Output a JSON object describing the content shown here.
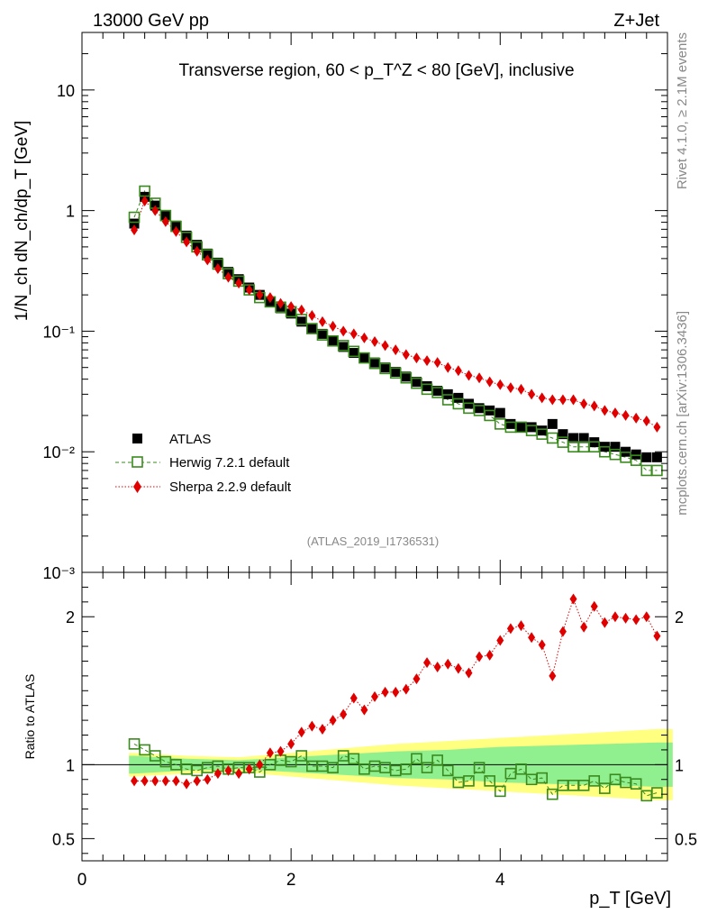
{
  "header": {
    "left": "13000 GeV pp",
    "right": "Z+Jet",
    "side_rivet": "Rivet 4.1.0, ≥ 2.1M events",
    "side_mcplots": "mcplots.cern.ch [arXiv:1306.3436]"
  },
  "chart_data": [
    {
      "type": "scatter",
      "title": "Transverse region, 60 < p_T^Z < 80 [GeV], inclusive",
      "analysis_label": "(ATLAS_2019_I1736531)",
      "ylabel": "1/N_ch dN_ch/dp_T [GeV]",
      "yscale": "log",
      "ylim": [
        0.001,
        30
      ],
      "xlim": [
        0,
        5.6
      ],
      "ytick_labels": [
        "10⁻³",
        "10⁻²",
        "10⁻¹",
        "1",
        "10"
      ],
      "legend": [
        "ATLAS",
        "Herwig 7.2.1 default",
        "Sherpa 2.2.9 default"
      ],
      "x": [
        0.5,
        0.6,
        0.7,
        0.8,
        0.9,
        1.0,
        1.1,
        1.2,
        1.3,
        1.4,
        1.5,
        1.6,
        1.7,
        1.8,
        1.9,
        2.0,
        2.1,
        2.2,
        2.3,
        2.4,
        2.5,
        2.6,
        2.7,
        2.8,
        2.9,
        3.0,
        3.1,
        3.2,
        3.3,
        3.4,
        3.5,
        3.6,
        3.7,
        3.8,
        3.9,
        4.0,
        4.1,
        4.2,
        4.3,
        4.4,
        4.5,
        4.6,
        4.7,
        4.8,
        4.9,
        5.0,
        5.1,
        5.2,
        5.3,
        5.4,
        5.5
      ],
      "series": [
        {
          "name": "ATLAS",
          "values": [
            0.78,
            1.3,
            1.1,
            0.9,
            0.75,
            0.62,
            0.52,
            0.44,
            0.37,
            0.31,
            0.27,
            0.23,
            0.2,
            0.175,
            0.155,
            0.14,
            0.12,
            0.105,
            0.095,
            0.083,
            0.074,
            0.066,
            0.06,
            0.055,
            0.05,
            0.046,
            0.042,
            0.038,
            0.035,
            0.032,
            0.03,
            0.028,
            0.025,
            0.023,
            0.022,
            0.021,
            0.017,
            0.016,
            0.016,
            0.015,
            0.017,
            0.014,
            0.013,
            0.013,
            0.012,
            0.011,
            0.011,
            0.01,
            0.0095,
            0.009,
            0.009
          ]
        },
        {
          "name": "Herwig 7.2.1 default",
          "values": [
            0.88,
            1.45,
            1.15,
            0.91,
            0.74,
            0.6,
            0.5,
            0.43,
            0.36,
            0.3,
            0.26,
            0.22,
            0.19,
            0.175,
            0.158,
            0.145,
            0.125,
            0.105,
            0.093,
            0.083,
            0.076,
            0.068,
            0.06,
            0.054,
            0.049,
            0.045,
            0.041,
            0.037,
            0.033,
            0.031,
            0.027,
            0.025,
            0.023,
            0.022,
            0.02,
            0.017,
            0.016,
            0.016,
            0.015,
            0.014,
            0.013,
            0.012,
            0.011,
            0.011,
            0.011,
            0.01,
            0.0095,
            0.009,
            0.0085,
            0.007,
            0.007
          ]
        },
        {
          "name": "Sherpa 2.2.9 default",
          "values": [
            0.69,
            1.2,
            1.0,
            0.81,
            0.67,
            0.55,
            0.46,
            0.39,
            0.33,
            0.28,
            0.25,
            0.22,
            0.2,
            0.19,
            0.17,
            0.16,
            0.15,
            0.135,
            0.12,
            0.11,
            0.1,
            0.095,
            0.088,
            0.082,
            0.076,
            0.07,
            0.064,
            0.06,
            0.057,
            0.055,
            0.05,
            0.047,
            0.043,
            0.041,
            0.038,
            0.036,
            0.034,
            0.033,
            0.03,
            0.028,
            0.027,
            0.027,
            0.027,
            0.025,
            0.024,
            0.022,
            0.021,
            0.02,
            0.019,
            0.018,
            0.016
          ]
        }
      ]
    },
    {
      "type": "scatter",
      "ylabel": "Ratio to ATLAS",
      "xlabel": "p_T [GeV]",
      "ylim": [
        0.35,
        2.3
      ],
      "xlim": [
        0,
        5.6
      ],
      "xtick_labels": [
        "0",
        "2",
        "4"
      ],
      "ytick_labels": [
        "0.5",
        "1",
        "2"
      ],
      "x": [
        0.5,
        0.6,
        0.7,
        0.8,
        0.9,
        1.0,
        1.1,
        1.2,
        1.3,
        1.4,
        1.5,
        1.6,
        1.7,
        1.8,
        1.9,
        2.0,
        2.1,
        2.2,
        2.3,
        2.4,
        2.5,
        2.6,
        2.7,
        2.8,
        2.9,
        3.0,
        3.1,
        3.2,
        3.3,
        3.4,
        3.5,
        3.6,
        3.7,
        3.8,
        3.9,
        4.0,
        4.1,
        4.2,
        4.3,
        4.4,
        4.5,
        4.6,
        4.7,
        4.8,
        4.9,
        5.0,
        5.1,
        5.2,
        5.3,
        5.4,
        5.5
      ],
      "band_x": [
        0.45,
        0.5,
        1.0,
        1.5,
        2.0,
        2.5,
        3.0,
        3.5,
        4.0,
        4.5,
        5.0,
        5.5,
        5.65
      ],
      "band_inner": [
        0.06,
        0.06,
        0.04,
        0.03,
        0.05,
        0.07,
        0.09,
        0.1,
        0.12,
        0.13,
        0.14,
        0.15,
        0.15
      ],
      "band_outer": [
        0.08,
        0.08,
        0.06,
        0.05,
        0.08,
        0.11,
        0.14,
        0.16,
        0.18,
        0.2,
        0.22,
        0.24,
        0.24
      ],
      "series": [
        {
          "name": "Herwig 7.2.1 default",
          "values": [
            1.14,
            1.1,
            1.06,
            1.02,
            1.0,
            0.97,
            0.96,
            0.98,
            0.99,
            0.97,
            0.98,
            0.98,
            0.95,
            1.0,
            1.03,
            1.02,
            1.06,
            0.99,
            0.99,
            0.98,
            1.06,
            1.04,
            0.97,
            0.99,
            0.98,
            0.96,
            0.97,
            1.04,
            0.98,
            1.03,
            0.96,
            0.88,
            0.89,
            0.98,
            0.89,
            0.82,
            0.94,
            0.97,
            0.9,
            0.91,
            0.8,
            0.86,
            0.86,
            0.86,
            0.89,
            0.84,
            0.9,
            0.88,
            0.87,
            0.79,
            0.81
          ]
        },
        {
          "name": "Sherpa 2.2.9 default",
          "values": [
            0.89,
            0.89,
            0.89,
            0.89,
            0.89,
            0.87,
            0.89,
            0.9,
            0.94,
            0.96,
            0.94,
            0.97,
            1.0,
            1.08,
            1.09,
            1.14,
            1.22,
            1.26,
            1.24,
            1.3,
            1.34,
            1.45,
            1.37,
            1.46,
            1.49,
            1.49,
            1.51,
            1.58,
            1.69,
            1.66,
            1.68,
            1.65,
            1.62,
            1.73,
            1.74,
            1.84,
            1.92,
            1.94,
            1.86,
            1.81,
            1.6,
            1.9,
            2.12,
            1.93,
            2.07,
            1.96,
            2.0,
            1.99,
            1.98,
            2.0,
            1.87
          ]
        }
      ]
    }
  ]
}
